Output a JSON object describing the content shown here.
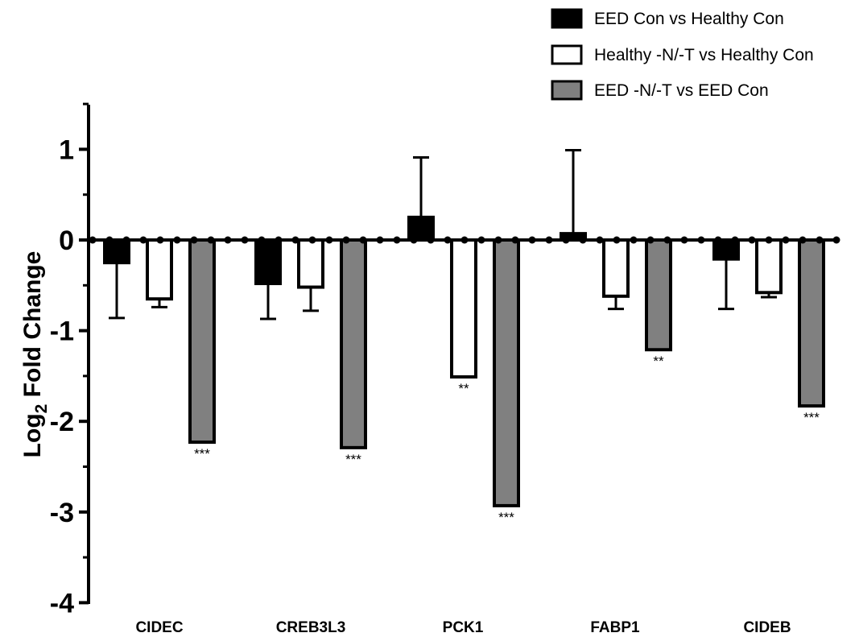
{
  "chart_data": {
    "type": "bar",
    "title": "",
    "ylabel": {
      "main": "Log",
      "sub": "2",
      "rest": " Fold Change"
    },
    "xlabel": "",
    "ylim": [
      -4,
      1.5
    ],
    "yticks": [
      1,
      0,
      -1,
      -2,
      -3,
      -4
    ],
    "categories": [
      "CIDEC",
      "CREB3L3",
      "PCK1",
      "FABP1",
      "CIDEB"
    ],
    "legend_position": "top-right",
    "series": [
      {
        "name": "EED Con vs Healthy Con",
        "fill": "#000000",
        "values": [
          -0.25,
          -0.48,
          0.25,
          0.07,
          -0.21
        ],
        "errors": [
          0.61,
          0.39,
          0.66,
          0.92,
          0.55
        ],
        "sig": [
          "",
          "",
          "",
          "",
          ""
        ]
      },
      {
        "name": "Healthy -N/-T vs Healthy Con",
        "fill": "#ffffff",
        "values": [
          -0.65,
          -0.52,
          -1.51,
          -0.62,
          -0.58
        ],
        "errors": [
          0.09,
          0.26,
          0.0,
          0.14,
          0.05
        ],
        "sig": [
          "",
          "",
          "**",
          "",
          ""
        ]
      },
      {
        "name": "EED -N/-T vs EED Con",
        "fill": "#808080",
        "values": [
          -2.23,
          -2.29,
          -2.93,
          -1.21,
          -1.83
        ],
        "errors": [
          0.0,
          0.0,
          0.0,
          0.0,
          0.0
        ],
        "sig": [
          "***",
          "***",
          "***",
          "**",
          "***"
        ]
      }
    ]
  }
}
